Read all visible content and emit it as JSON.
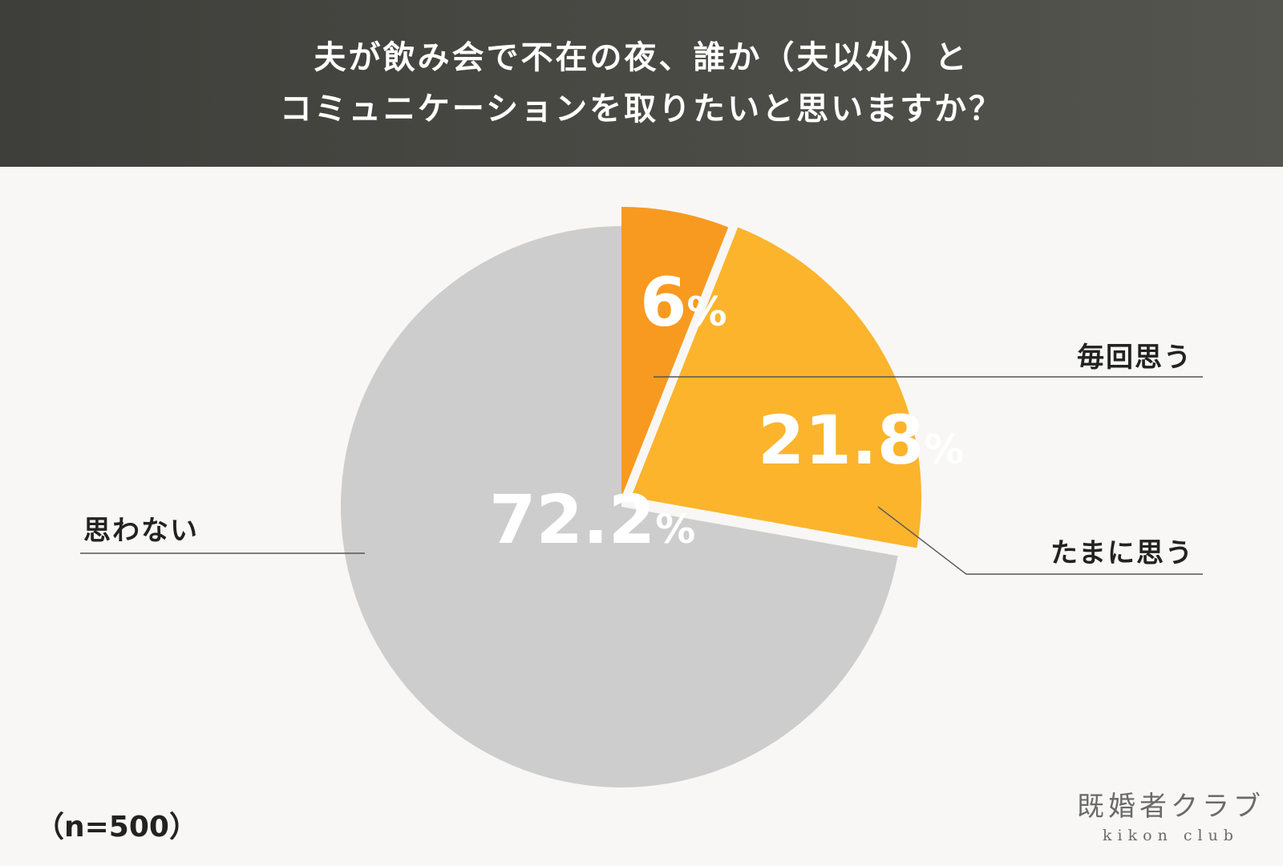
{
  "header": {
    "title_line1": "夫が飲み会で不在の夜、誰か（夫以外）と",
    "title_line2": "コミュニケーションを取りたいと思いますか？"
  },
  "chart_data": {
    "type": "pie",
    "start_angle": "12 o'clock",
    "direction": "clockwise",
    "slices": [
      {
        "label": "毎回思う",
        "value": 6,
        "display": "6",
        "color": "#f89a1f"
      },
      {
        "label": "たまに思う",
        "value": 21.8,
        "display": "21.8",
        "color": "#fbb42c",
        "exploded": true
      },
      {
        "label": "思わない",
        "value": 72.2,
        "display": "72.2",
        "color": "#cdcdcd"
      }
    ],
    "value_suffix": "%"
  },
  "sample_size": "（n=500）",
  "logo": {
    "jp": "既婚者クラブ",
    "en": "kikon club"
  }
}
